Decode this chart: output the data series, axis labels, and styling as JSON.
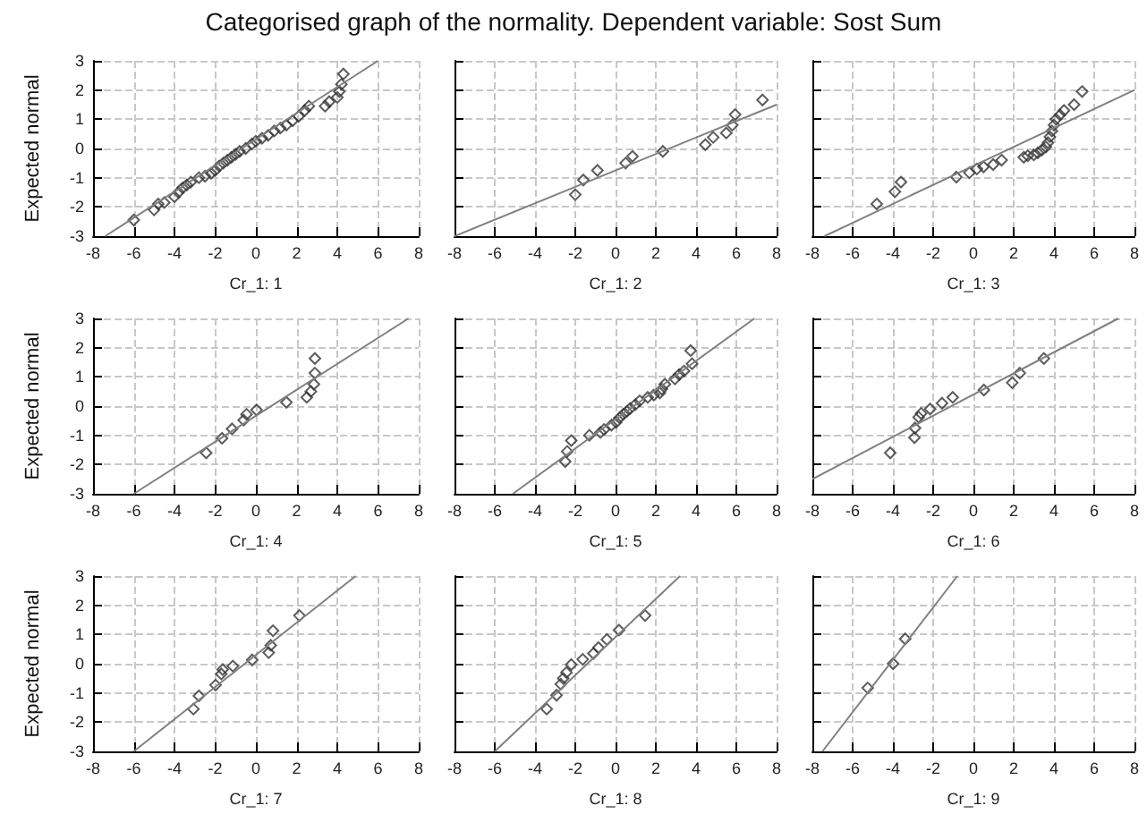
{
  "chart_data": [
    {
      "type": "scatter",
      "title": "Categorised graph of the normality. Dependent variable: Sost Sum",
      "xlabel": "Cr_1: 1",
      "ylabel": "Expected normal",
      "xlim": [
        -8,
        8
      ],
      "xticks": [
        -8,
        -6,
        -4,
        -2,
        0,
        2,
        4,
        6,
        8
      ],
      "ylim": [
        -3,
        3
      ],
      "yticks": [
        -3,
        -2,
        -1,
        0,
        1,
        2,
        3
      ],
      "grid": true,
      "marker": "diamond",
      "series": [
        {
          "color": "#333333",
          "x": [
            -6,
            -5,
            -4.8,
            -4.5,
            -4,
            -3.8,
            -3.6,
            -3.4,
            -3.2,
            -2.8,
            -2.5,
            -2.2,
            -2,
            -1.8,
            -1.6,
            -1.4,
            -1.2,
            -1,
            -0.8,
            -0.5,
            -0.2,
            0,
            0.3,
            0.6,
            0.9,
            1.2,
            1.5,
            1.8,
            2.1,
            2.4,
            2.6,
            3.4,
            3.6,
            4.0,
            4.1,
            4.2,
            4.3
          ],
          "values": [
            -2.45,
            -2.1,
            -1.9,
            -1.85,
            -1.65,
            -1.5,
            -1.35,
            -1.25,
            -1.15,
            -1,
            -0.95,
            -0.85,
            -0.75,
            -0.6,
            -0.5,
            -0.4,
            -0.3,
            -0.2,
            -0.1,
            0,
            0.15,
            0.25,
            0.35,
            0.45,
            0.6,
            0.7,
            0.8,
            0.95,
            1.1,
            1.3,
            1.45,
            1.45,
            1.6,
            1.75,
            1.95,
            2.2,
            2.55
          ]
        },
        {
          "type": "line",
          "marker": "none",
          "color": "#808080",
          "x": [
            -7.4,
            6.0
          ],
          "values": [
            -3,
            3
          ]
        }
      ]
    },
    {
      "type": "scatter",
      "xlabel": "Cr_1: 2",
      "xlim": [
        -8,
        8
      ],
      "xticks": [
        -8,
        -6,
        -4,
        -2,
        0,
        2,
        4,
        6,
        8
      ],
      "ylim": [
        -3,
        3
      ],
      "yticks": [
        -3,
        -2,
        -1,
        0,
        1,
        2,
        3
      ],
      "grid": true,
      "marker": "diamond",
      "tick_labels": "x",
      "series": [
        {
          "color": "#333333",
          "x": [
            -2,
            -1.6,
            -0.9,
            0.5,
            0.84,
            2.35,
            4.46,
            4.85,
            5.5,
            5.8,
            5.94,
            7.3
          ],
          "values": [
            -1.58,
            -1.08,
            -0.75,
            -0.5,
            -0.27,
            -0.1,
            0.13,
            0.38,
            0.53,
            0.8,
            1.16,
            1.66
          ]
        },
        {
          "type": "line",
          "marker": "none",
          "color": "#808080",
          "x": [
            -8,
            8
          ],
          "values": [
            -3,
            1.5
          ]
        }
      ]
    },
    {
      "type": "scatter",
      "xlabel": "Cr_1: 3",
      "xlim": [
        -8,
        8
      ],
      "xticks": [
        -8,
        -6,
        -4,
        -2,
        0,
        2,
        4,
        6,
        8
      ],
      "ylim": [
        -3,
        3
      ],
      "yticks": [
        -3,
        -2,
        -1,
        0,
        1,
        2,
        3
      ],
      "grid": true,
      "marker": "diamond",
      "tick_labels": "x",
      "series": [
        {
          "color": "#333333",
          "x": [
            -4.8,
            -3.9,
            -3.6,
            -0.85,
            -0.2,
            0.17,
            0.5,
            0.98,
            1.4,
            2.5,
            2.7,
            3.0,
            3.2,
            3.4,
            3.6,
            3.7,
            3.8,
            3.9,
            4.0,
            4.1,
            4.3,
            4.5,
            5.0,
            5.4
          ],
          "values": [
            -1.9,
            -1.48,
            -1.15,
            -0.98,
            -0.83,
            -0.7,
            -0.63,
            -0.55,
            -0.4,
            -0.3,
            -0.25,
            -0.22,
            -0.15,
            -0.05,
            0.05,
            0.2,
            0.4,
            0.6,
            0.8,
            1.0,
            1.15,
            1.3,
            1.5,
            1.95
          ]
        },
        {
          "type": "line",
          "marker": "none",
          "color": "#808080",
          "x": [
            -7.4,
            8
          ],
          "values": [
            -3,
            2
          ]
        }
      ]
    },
    {
      "type": "scatter",
      "xlabel": "Cr_1: 4",
      "ylabel": "Expected normal",
      "xlim": [
        -8,
        8
      ],
      "xticks": [
        -8,
        -6,
        -4,
        -2,
        0,
        2,
        4,
        6,
        8
      ],
      "ylim": [
        -3,
        3
      ],
      "yticks": [
        -3,
        -2,
        -1,
        0,
        1,
        2,
        3
      ],
      "grid": true,
      "marker": "diamond",
      "series": [
        {
          "color": "#333333",
          "x": [
            -2.44,
            -1.66,
            -1.17,
            -0.6,
            -0.46,
            0.03,
            1.5,
            2.5,
            2.7,
            2.85,
            2.9,
            2.9
          ],
          "values": [
            -1.6,
            -1.1,
            -0.78,
            -0.48,
            -0.28,
            -0.13,
            0.13,
            0.3,
            0.5,
            0.75,
            1.13,
            1.63
          ]
        },
        {
          "type": "line",
          "marker": "none",
          "color": "#808080",
          "x": [
            -6,
            7.5
          ],
          "values": [
            -3,
            3
          ]
        }
      ]
    },
    {
      "type": "scatter",
      "xlabel": "Cr_1: 5",
      "xlim": [
        -8,
        8
      ],
      "xticks": [
        -8,
        -6,
        -4,
        -2,
        0,
        2,
        4,
        6,
        8
      ],
      "ylim": [
        -3,
        3
      ],
      "yticks": [
        -3,
        -2,
        -1,
        0,
        1,
        2,
        3
      ],
      "grid": true,
      "marker": "diamond",
      "tick_labels": "x",
      "series": [
        {
          "color": "#333333",
          "x": [
            -2.5,
            -2.4,
            -2.2,
            -1.3,
            -0.75,
            -0.57,
            -0.2,
            0.03,
            0.2,
            0.38,
            0.56,
            0.73,
            0.98,
            1.2,
            1.6,
            1.9,
            2.2,
            2.3,
            2.45,
            2.95,
            3.16,
            3.4,
            3.8,
            3.73
          ],
          "values": [
            -1.9,
            -1.55,
            -1.18,
            -1,
            -0.9,
            -0.8,
            -0.65,
            -0.55,
            -0.4,
            -0.28,
            -0.18,
            -0.08,
            0.05,
            0.18,
            0.3,
            0.38,
            0.45,
            0.58,
            0.75,
            0.93,
            1.08,
            1.2,
            1.45,
            1.9
          ]
        },
        {
          "type": "line",
          "marker": "none",
          "color": "#808080",
          "x": [
            -5.1,
            6.9
          ],
          "values": [
            -3,
            3
          ]
        }
      ]
    },
    {
      "type": "scatter",
      "xlabel": "Cr_1: 6",
      "xlim": [
        -8,
        8
      ],
      "xticks": [
        -8,
        -6,
        -4,
        -2,
        0,
        2,
        4,
        6,
        8
      ],
      "ylim": [
        -3,
        3
      ],
      "yticks": [
        -3,
        -2,
        -1,
        0,
        1,
        2,
        3
      ],
      "grid": true,
      "marker": "diamond",
      "tick_labels": "x",
      "series": [
        {
          "color": "#333333",
          "x": [
            -4.13,
            -2.93,
            -2.9,
            -2.72,
            -2.6,
            -2.15,
            -1.56,
            -1.03,
            0.52,
            1.93,
            2.3,
            3.5
          ],
          "values": [
            -1.6,
            -1.08,
            -0.75,
            -0.38,
            -0.25,
            -0.1,
            0.1,
            0.3,
            0.55,
            0.8,
            1.13,
            1.63
          ]
        },
        {
          "type": "line",
          "marker": "none",
          "color": "#808080",
          "x": [
            -8,
            7.2
          ],
          "values": [
            -2.5,
            3
          ]
        }
      ]
    },
    {
      "type": "scatter",
      "xlabel": "Cr_1: 7",
      "ylabel": "Expected normal",
      "xlim": [
        -8,
        8
      ],
      "xticks": [
        -8,
        -6,
        -4,
        -2,
        0,
        2,
        4,
        6,
        8
      ],
      "ylim": [
        -3,
        3
      ],
      "yticks": [
        -3,
        -2,
        -1,
        0,
        1,
        2,
        3
      ],
      "grid": true,
      "marker": "diamond",
      "series": [
        {
          "color": "#333333",
          "x": [
            -3.07,
            -2.8,
            -1.98,
            -1.7,
            -1.63,
            -1.13,
            -0.18,
            0.63,
            0.73,
            0.84,
            2.14
          ],
          "values": [
            -1.55,
            -1.1,
            -0.73,
            -0.35,
            -0.2,
            -0.08,
            0.13,
            0.38,
            0.63,
            1.13,
            1.65
          ]
        },
        {
          "type": "line",
          "marker": "none",
          "color": "#808080",
          "x": [
            -6,
            4.9
          ],
          "values": [
            -3,
            3
          ]
        }
      ]
    },
    {
      "type": "scatter",
      "xlabel": "Cr_1: 8",
      "xlim": [
        -8,
        8
      ],
      "xticks": [
        -8,
        -6,
        -4,
        -2,
        0,
        2,
        4,
        6,
        8
      ],
      "ylim": [
        -3,
        3
      ],
      "yticks": [
        -3,
        -2,
        -1,
        0,
        1,
        2,
        3
      ],
      "grid": true,
      "marker": "diamond",
      "tick_labels": "x",
      "series": [
        {
          "color": "#333333",
          "x": [
            -3.42,
            -2.93,
            -2.72,
            -2.6,
            -2.44,
            -2.2,
            -1.63,
            -1.1,
            -0.85,
            -0.43,
            0.17,
            1.47
          ],
          "values": [
            -1.55,
            -1.08,
            -0.7,
            -0.5,
            -0.3,
            -0.03,
            0.15,
            0.35,
            0.55,
            0.83,
            1.15,
            1.65
          ]
        },
        {
          "type": "line",
          "marker": "none",
          "color": "#808080",
          "x": [
            -6,
            3.2
          ],
          "values": [
            -3,
            3
          ]
        }
      ]
    },
    {
      "type": "scatter",
      "xlabel": "Cr_1: 9",
      "xlim": [
        -8,
        8
      ],
      "xticks": [
        -8,
        -6,
        -4,
        -2,
        0,
        2,
        4,
        6,
        8
      ],
      "ylim": [
        -3,
        3
      ],
      "yticks": [
        -3,
        -2,
        -1,
        0,
        1,
        2,
        3
      ],
      "grid": true,
      "marker": "diamond",
      "tick_labels": "x",
      "series": [
        {
          "color": "#333333",
          "x": [
            -5.25,
            -3.99,
            -3.39
          ],
          "values": [
            -0.83,
            0,
            0.85
          ]
        },
        {
          "type": "line",
          "marker": "none",
          "color": "#808080",
          "x": [
            -7.5,
            -0.8
          ],
          "values": [
            -3,
            3
          ]
        }
      ]
    }
  ]
}
